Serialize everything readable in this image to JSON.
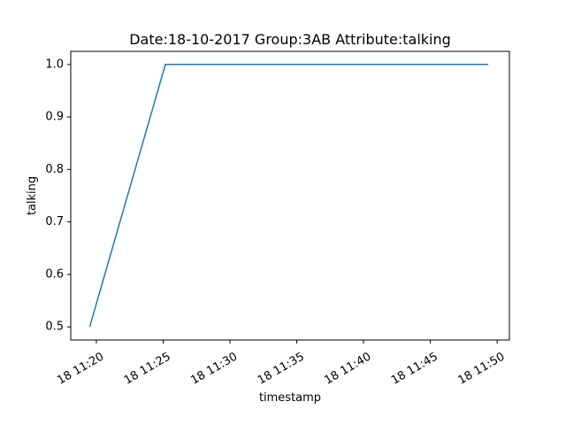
{
  "chart_data": {
    "type": "line",
    "title": "Date:18-10-2017  Group:3AB Attribute:talking",
    "xlabel": "timestamp",
    "ylabel": "talking",
    "x_ticks": [
      {
        "value": "2017-10-18T11:20",
        "label": "18 11:20"
      },
      {
        "value": "2017-10-18T11:25",
        "label": "18 11:25"
      },
      {
        "value": "2017-10-18T11:30",
        "label": "18 11:30"
      },
      {
        "value": "2017-10-18T11:35",
        "label": "18 11:35"
      },
      {
        "value": "2017-10-18T11:40",
        "label": "18 11:40"
      },
      {
        "value": "2017-10-18T11:45",
        "label": "18 11:45"
      },
      {
        "value": "2017-10-18T11:50",
        "label": "18 11:50"
      }
    ],
    "y_ticks": [
      {
        "value": 0.5,
        "label": "0.5"
      },
      {
        "value": 0.6,
        "label": "0.6"
      },
      {
        "value": 0.7,
        "label": "0.7"
      },
      {
        "value": 0.8,
        "label": "0.8"
      },
      {
        "value": 0.9,
        "label": "0.9"
      },
      {
        "value": 1.0,
        "label": "1.0"
      }
    ],
    "xlim": [
      "2017-10-18T11:18:05",
      "2017-10-18T11:50:55"
    ],
    "ylim": [
      0.475,
      1.025
    ],
    "grid": false,
    "series": [
      {
        "color": "#1f77b4",
        "points": [
          {
            "x": "2017-10-18T11:19:30",
            "y": 0.5
          },
          {
            "x": "2017-10-18T11:25:10",
            "y": 1.0
          },
          {
            "x": "2017-10-18T11:49:20",
            "y": 1.0
          }
        ]
      }
    ]
  }
}
